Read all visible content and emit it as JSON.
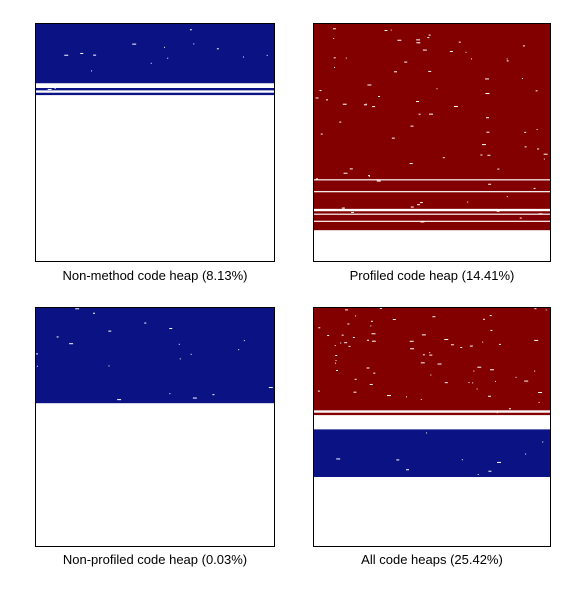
{
  "chart_data": [
    {
      "type": "heatmap",
      "title": "Non-method code heap (8.13%)",
      "color": "#0b1283",
      "occupied_fraction": 0.3,
      "stripes": [
        [
          0.25,
          0.27
        ],
        [
          0.28,
          0.29
        ]
      ],
      "dot_density": 0.2
    },
    {
      "type": "heatmap",
      "title": "Profiled code heap (14.41%)",
      "color": "#820000",
      "occupied_fraction": 0.87,
      "stripes": [
        [
          0.655,
          0.66
        ],
        [
          0.705,
          0.71
        ],
        [
          0.78,
          0.79
        ],
        [
          0.8,
          0.805
        ],
        [
          0.83,
          0.835
        ]
      ],
      "dot_density": 1.0
    },
    {
      "type": "heatmap",
      "title": "Non-profiled code heap (0.03%)",
      "color": "#0b1283",
      "occupied_fraction": 0.4,
      "stripes": [],
      "dot_density": 0.25
    },
    {
      "type": "heatmap",
      "title": "All code heaps (25.42%)",
      "color_profiled": "#820000",
      "color_nonprofiled": "#0b1283",
      "profiled_fraction": 0.45,
      "gap_fraction": [
        0.45,
        0.51
      ],
      "nonprofiled_fraction": [
        0.51,
        0.71
      ],
      "stripes": [
        [
          0.43,
          0.435
        ],
        [
          0.435,
          0.44
        ]
      ],
      "dot_density": 1.0
    }
  ]
}
